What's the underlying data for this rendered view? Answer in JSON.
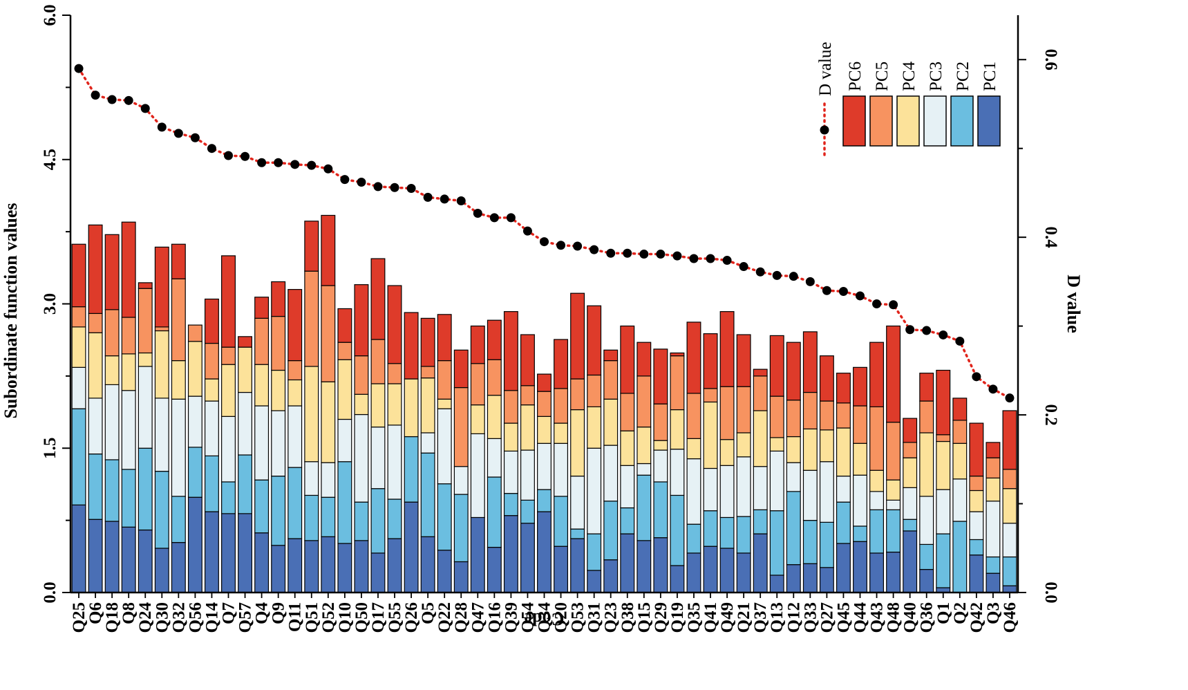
{
  "chart_data": {
    "type": "bar",
    "stacked": true,
    "xlabel": "Code",
    "ylabel": "Subordinate function values",
    "y2label": "D value",
    "ylim": [
      0,
      6.0
    ],
    "y2lim": [
      0,
      0.65
    ],
    "yticks": [
      "0.0",
      "1.5",
      "3.0",
      "4.5",
      "6.0"
    ],
    "y2ticks": [
      "0.0",
      "0.2",
      "0.4",
      "0.6"
    ],
    "categories": [
      "Q25",
      "Q6",
      "Q18",
      "Q8",
      "Q24",
      "Q30",
      "Q32",
      "Q56",
      "Q14",
      "Q7",
      "Q57",
      "Q4",
      "Q9",
      "Q11",
      "Q51",
      "Q52",
      "Q10",
      "Q50",
      "Q17",
      "Q55",
      "Q26",
      "Q5",
      "Q22",
      "Q28",
      "Q47",
      "Q16",
      "Q39",
      "Q54",
      "Q34",
      "Q20",
      "Q53",
      "Q31",
      "Q23",
      "Q38",
      "Q15",
      "Q29",
      "Q19",
      "Q35",
      "Q41",
      "Q49",
      "Q21",
      "Q37",
      "Q13",
      "Q12",
      "Q33",
      "Q27",
      "Q45",
      "Q44",
      "Q43",
      "Q48",
      "Q40",
      "Q36",
      "Q1",
      "Q2",
      "Q42",
      "Q3",
      "Q46"
    ],
    "series": [
      {
        "name": "PC1",
        "color": "#4a6fb5",
        "values": [
          0.91,
          0.76,
          0.74,
          0.68,
          0.65,
          0.46,
          0.52,
          0.99,
          0.84,
          0.82,
          0.82,
          0.62,
          0.49,
          0.56,
          0.54,
          0.58,
          0.51,
          0.54,
          0.41,
          0.56,
          0.94,
          0.58,
          0.44,
          0.32,
          0.78,
          0.47,
          0.8,
          0.72,
          0.84,
          0.48,
          0.56,
          0.23,
          0.34,
          0.61,
          0.54,
          0.57,
          0.28,
          0.41,
          0.48,
          0.46,
          0.41,
          0.61,
          0.18,
          0.29,
          0.3,
          0.26,
          0.51,
          0.53,
          0.41,
          0.42,
          0.64,
          0.24,
          0.05,
          0.0,
          0.39,
          0.2,
          0.07
        ]
      },
      {
        "name": "PC2",
        "color": "#6bbee0",
        "values": [
          1.0,
          0.68,
          0.64,
          0.6,
          0.85,
          0.8,
          0.48,
          0.52,
          0.58,
          0.33,
          0.61,
          0.55,
          0.72,
          0.74,
          0.47,
          0.41,
          0.85,
          0.4,
          0.67,
          0.41,
          0.68,
          0.87,
          0.69,
          0.7,
          0.0,
          0.73,
          0.23,
          0.24,
          0.23,
          0.52,
          0.1,
          0.38,
          0.61,
          0.27,
          0.68,
          0.58,
          0.73,
          0.3,
          0.37,
          0.32,
          0.38,
          0.25,
          0.67,
          0.76,
          0.45,
          0.47,
          0.43,
          0.16,
          0.45,
          0.44,
          0.12,
          0.26,
          0.56,
          0.74,
          0.16,
          0.17,
          0.3
        ]
      },
      {
        "name": "PC3",
        "color": "#e6f1f5",
        "values": [
          0.43,
          0.58,
          0.78,
          0.82,
          0.85,
          0.76,
          1.01,
          0.53,
          0.57,
          0.68,
          0.65,
          0.77,
          0.68,
          0.64,
          0.35,
          0.36,
          0.44,
          0.91,
          0.64,
          0.77,
          0.0,
          0.21,
          0.78,
          0.29,
          0.87,
          0.4,
          0.44,
          0.52,
          0.48,
          0.55,
          0.55,
          0.89,
          0.58,
          0.44,
          0.12,
          0.33,
          0.48,
          0.68,
          0.44,
          0.54,
          0.62,
          0.45,
          0.62,
          0.3,
          0.52,
          0.63,
          0.27,
          0.53,
          0.19,
          0.1,
          0.33,
          0.5,
          0.46,
          0.44,
          0.29,
          0.58,
          0.35
        ]
      },
      {
        "name": "PC4",
        "color": "#fce29a",
        "values": [
          0.42,
          0.68,
          0.3,
          0.38,
          0.14,
          0.7,
          0.4,
          0.57,
          0.23,
          0.54,
          0.47,
          0.43,
          0.42,
          0.27,
          0.99,
          0.84,
          0.62,
          0.21,
          0.45,
          0.43,
          0.6,
          0.57,
          0.1,
          0.0,
          0.3,
          0.45,
          0.29,
          0.47,
          0.28,
          0.21,
          0.69,
          0.43,
          0.48,
          0.36,
          0.38,
          0.1,
          0.41,
          0.21,
          0.69,
          0.27,
          0.25,
          0.58,
          0.14,
          0.27,
          0.43,
          0.33,
          0.5,
          0.33,
          0.22,
          0.21,
          0.31,
          0.66,
          0.5,
          0.37,
          0.22,
          0.24,
          0.36
        ]
      },
      {
        "name": "PC5",
        "color": "#f79360",
        "values": [
          0.21,
          0.2,
          0.48,
          0.38,
          0.67,
          0.04,
          0.85,
          0.17,
          0.37,
          0.18,
          0.0,
          0.48,
          0.56,
          0.2,
          0.99,
          1.0,
          0.18,
          0.4,
          0.46,
          0.21,
          0.0,
          0.12,
          0.4,
          0.82,
          0.43,
          0.37,
          0.34,
          0.2,
          0.26,
          0.36,
          0.32,
          0.33,
          0.4,
          0.39,
          0.53,
          0.38,
          0.56,
          0.47,
          0.14,
          0.55,
          0.48,
          0.36,
          0.43,
          0.38,
          0.38,
          0.3,
          0.26,
          0.39,
          0.66,
          0.6,
          0.16,
          0.33,
          0.07,
          0.24,
          0.15,
          0.21,
          0.2
        ]
      },
      {
        "name": "PC6",
        "color": "#de3b2a",
        "values": [
          0.65,
          0.92,
          0.78,
          0.99,
          0.06,
          0.83,
          0.36,
          0.0,
          0.46,
          0.95,
          0.11,
          0.22,
          0.36,
          0.74,
          0.52,
          0.73,
          0.35,
          0.74,
          0.84,
          0.81,
          0.69,
          0.5,
          0.48,
          0.39,
          0.39,
          0.41,
          0.82,
          0.53,
          0.18,
          0.51,
          0.89,
          0.72,
          0.11,
          0.7,
          0.35,
          0.57,
          0.03,
          0.74,
          0.57,
          0.78,
          0.54,
          0.07,
          0.63,
          0.6,
          0.63,
          0.47,
          0.31,
          0.4,
          0.67,
          1.0,
          0.25,
          0.29,
          0.67,
          0.23,
          0.55,
          0.16,
          0.61
        ]
      }
    ],
    "d_values": {
      "name": "D value",
      "color": "#e0241b",
      "values": [
        0.59,
        0.56,
        0.555,
        0.554,
        0.545,
        0.524,
        0.517,
        0.512,
        0.5,
        0.492,
        0.491,
        0.484,
        0.484,
        0.482,
        0.481,
        0.477,
        0.465,
        0.462,
        0.457,
        0.456,
        0.455,
        0.445,
        0.443,
        0.441,
        0.427,
        0.422,
        0.422,
        0.407,
        0.395,
        0.391,
        0.39,
        0.386,
        0.382,
        0.382,
        0.381,
        0.381,
        0.379,
        0.376,
        0.376,
        0.374,
        0.367,
        0.361,
        0.357,
        0.356,
        0.35,
        0.34,
        0.339,
        0.334,
        0.325,
        0.324,
        0.296,
        0.295,
        0.29,
        0.283,
        0.243,
        0.229,
        0.219
      ]
    },
    "legend": {
      "position": "top-right",
      "title": "D value",
      "items": [
        "PC6",
        "PC5",
        "PC4",
        "PC3",
        "PC2",
        "PC1"
      ]
    }
  }
}
